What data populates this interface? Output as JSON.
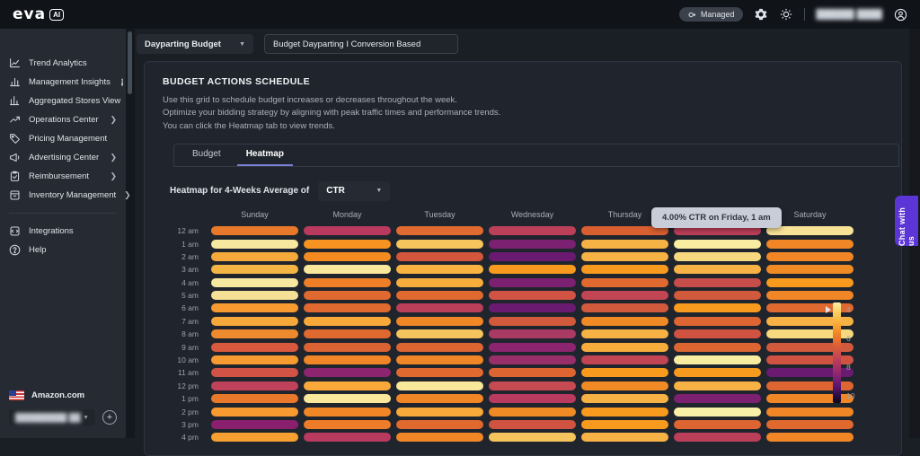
{
  "topbar": {
    "logo_text": "eva",
    "logo_tag": "AI",
    "managed_label": "Managed",
    "user_name_redacted": "██████ ████"
  },
  "sidebar": {
    "items": [
      {
        "icon": "trend-analytics-icon",
        "label": "Trend Analytics",
        "chevron": false,
        "badge": ""
      },
      {
        "icon": "management-insights-icon",
        "label": "Management Insights",
        "chevron": false,
        "badge": "i"
      },
      {
        "icon": "aggregated-stores-icon",
        "label": "Aggregated Stores View",
        "chevron": false,
        "badge": ""
      },
      {
        "icon": "operations-center-icon",
        "label": "Operations Center",
        "chevron": true,
        "badge": ""
      },
      {
        "icon": "pricing-management-icon",
        "label": "Pricing Management",
        "chevron": false,
        "badge": ""
      },
      {
        "icon": "advertising-center-icon",
        "label": "Advertising Center",
        "chevron": true,
        "badge": ""
      },
      {
        "icon": "reimbursement-icon",
        "label": "Reimbursement",
        "chevron": true,
        "badge": ""
      },
      {
        "icon": "inventory-management-icon",
        "label": "Inventory Management",
        "chevron": true,
        "badge": ""
      }
    ],
    "items_secondary": [
      {
        "icon": "integrations-icon",
        "label": "Integrations",
        "chevron": false,
        "badge": ""
      },
      {
        "icon": "help-icon",
        "label": "Help",
        "chevron": false,
        "badge": ""
      }
    ],
    "footer": {
      "marketplace": "Amazon.com",
      "store_name_redacted": "█████████ ██"
    }
  },
  "main": {
    "schedule_select_value": "Dayparting Budget",
    "schedule_name_value": "Budget Dayparting I Conversion Based",
    "panel_title": "BUDGET ACTIONS SCHEDULE",
    "description_lines": [
      "Use this grid to schedule budget increases or decreases throughout the week.",
      "Optimize your bidding strategy by aligning with peak traffic times and performance trends.",
      "You can click the Heatmap tab to view trends."
    ],
    "tabs": [
      {
        "label": "Budget",
        "active": false
      },
      {
        "label": "Heatmap",
        "active": true
      }
    ],
    "heatmap_label": "Heatmap for 4-Weeks Average of",
    "metric_select_value": "CTR",
    "tooltip_text": "4.00% CTR on Friday, 1 am"
  },
  "chat_button_label": "Chat with us",
  "chart_data": {
    "type": "heatmap",
    "title": "Heatmap for 4-Weeks Average of CTR",
    "columns": [
      "Sunday",
      "Monday",
      "Tuesday",
      "Wednesday",
      "Thursday",
      "Friday",
      "Saturday"
    ],
    "rows": [
      "12 am",
      "1 am",
      "2 am",
      "3 am",
      "4 am",
      "5 am",
      "6 am",
      "7 am",
      "8 am",
      "9 am",
      "10 am",
      "11 am",
      "12 pm",
      "1 pm",
      "2 pm",
      "3 pm",
      "4 pm"
    ],
    "values_pct_ctr": [
      [
        6.0,
        7.3,
        6.2,
        7.2,
        6.4,
        7.2,
        4.1
      ],
      [
        4.0,
        5.5,
        4.6,
        8.4,
        4.9,
        4.0,
        5.6
      ],
      [
        5.1,
        5.6,
        6.6,
        8.7,
        4.9,
        4.3,
        5.6
      ],
      [
        4.9,
        4.1,
        4.9,
        5.4,
        5.4,
        4.9,
        5.7
      ],
      [
        4.0,
        5.8,
        5.0,
        8.4,
        6.1,
        6.8,
        5.5
      ],
      [
        4.1,
        6.2,
        6.2,
        6.7,
        7.0,
        6.5,
        5.6
      ],
      [
        5.4,
        6.2,
        7.2,
        8.7,
        6.5,
        5.4,
        6.2
      ],
      [
        5.1,
        5.1,
        5.6,
        6.5,
        5.7,
        6.3,
        4.9
      ],
      [
        5.7,
        6.2,
        4.6,
        7.6,
        4.9,
        6.7,
        4.3
      ],
      [
        6.5,
        6.4,
        6.3,
        8.1,
        5.0,
        6.3,
        6.5
      ],
      [
        5.4,
        5.6,
        5.6,
        7.9,
        7.0,
        4.1,
        6.7
      ],
      [
        6.7,
        8.1,
        6.1,
        6.3,
        5.4,
        5.5,
        8.7
      ],
      [
        7.1,
        5.1,
        4.1,
        6.9,
        5.7,
        4.9,
        6.3
      ],
      [
        6.0,
        4.1,
        5.6,
        7.3,
        4.9,
        8.4,
        5.6
      ],
      [
        5.4,
        5.6,
        5.1,
        5.7,
        5.5,
        3.9,
        5.6
      ],
      [
        8.2,
        5.8,
        6.2,
        6.7,
        5.5,
        6.3,
        6.2
      ],
      [
        5.3,
        7.3,
        5.6,
        4.8,
        4.9,
        7.2,
        5.6
      ]
    ],
    "cell_colors": [
      [
        "#e8782a",
        "#b93a5e",
        "#e06a2f",
        "#bc3f59",
        "#d95f31",
        "#bc3f59",
        "#f7e296"
      ],
      [
        "#f7e8a0",
        "#f79320",
        "#f6c45c",
        "#7c2071",
        "#f7b245",
        "#f8eda1",
        "#f18627"
      ],
      [
        "#f5a93b",
        "#f48b20",
        "#d4563c",
        "#6b1a72",
        "#f7b245",
        "#f6d87e",
        "#f18627"
      ],
      [
        "#f3b544",
        "#f9e79b",
        "#f8b341",
        "#f79a1e",
        "#f79a1e",
        "#f7b245",
        "#ef8a25"
      ],
      [
        "#f7e8a0",
        "#ef7f26",
        "#f7ad3c",
        "#7c2071",
        "#e0692f",
        "#c74d4b",
        "#f79a1e"
      ],
      [
        "#f5e096",
        "#e0692f",
        "#e0692f",
        "#d05344",
        "#c24553",
        "#d05a3b",
        "#f18627"
      ],
      [
        "#f79b30",
        "#e0692f",
        "#bc3f59",
        "#6b1a72",
        "#d05a3b",
        "#f79a1e",
        "#e0692f"
      ],
      [
        "#f5a93b",
        "#f8a93a",
        "#f18627",
        "#d05a3b",
        "#ef8a25",
        "#dd6532",
        "#f7b245"
      ],
      [
        "#ee8a2e",
        "#e0692f",
        "#f6c45c",
        "#a93a63",
        "#f7b245",
        "#cf5340",
        "#f6d87e"
      ],
      [
        "#d9593f",
        "#da6333",
        "#dd6532",
        "#8c2470",
        "#f7ad3c",
        "#dd6532",
        "#d05a3b"
      ],
      [
        "#f79b30",
        "#f18627",
        "#f18627",
        "#992f6a",
        "#c24553",
        "#f8eda1",
        "#cf5340"
      ],
      [
        "#d05346",
        "#8c2470",
        "#e0692f",
        "#dd6532",
        "#f79a1e",
        "#f79a1e",
        "#6b1a72"
      ],
      [
        "#c0415a",
        "#f8a93a",
        "#f9e79b",
        "#c54a51",
        "#ef8a25",
        "#f7b245",
        "#dd6532"
      ],
      [
        "#e8782a",
        "#f9e79b",
        "#f18627",
        "#b83a5e",
        "#f7b245",
        "#7c2071",
        "#f18627"
      ],
      [
        "#f79b30",
        "#f18627",
        "#f8a93a",
        "#ef8a25",
        "#f79a1e",
        "#f9f0a8",
        "#f18627"
      ],
      [
        "#8a1f6e",
        "#ee7c28",
        "#e0692f",
        "#cf5340",
        "#f79a1e",
        "#dd6532",
        "#e0692f"
      ],
      [
        "#f5a030",
        "#b83a5e",
        "#f18627",
        "#f6c45c",
        "#f7b245",
        "#bc3f59",
        "#f18627"
      ]
    ],
    "legend": {
      "ticks": [
        4,
        6,
        8,
        10
      ],
      "marker_value": 4,
      "unit": "%"
    },
    "hovered_cell": {
      "day": "Friday",
      "time": "1 am",
      "value_pct": 4.0
    },
    "colors_meaning": {
      "low_value_color": "#f9e79b",
      "high_value_color": "#0b0716"
    }
  }
}
